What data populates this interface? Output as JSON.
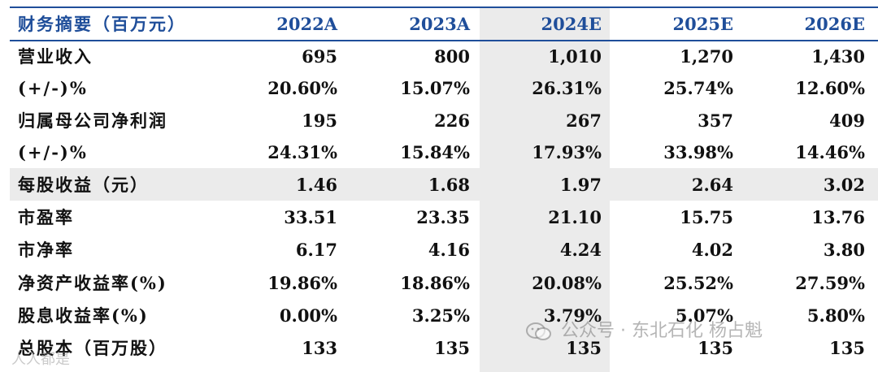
{
  "header": {
    "title": "财务摘要（百万元）",
    "years": [
      "2022A",
      "2023A",
      "2024E",
      "2025E",
      "2026E"
    ]
  },
  "rows": [
    {
      "label": "营业收入",
      "values": [
        "695",
        "800",
        "1,010",
        "1,270",
        "1,430"
      ]
    },
    {
      "label": "(+/-)%",
      "values": [
        "20.60%",
        "15.07%",
        "26.31%",
        "25.74%",
        "12.60%"
      ]
    },
    {
      "label": "归属母公司净利润",
      "values": [
        "195",
        "226",
        "267",
        "357",
        "409"
      ]
    },
    {
      "label": "(+/-)%",
      "values": [
        "24.31%",
        "15.84%",
        "17.93%",
        "33.98%",
        "14.46%"
      ]
    },
    {
      "label": "每股收益（元）",
      "values": [
        "1.46",
        "1.68",
        "1.97",
        "2.64",
        "3.02"
      ]
    },
    {
      "label": "市盈率",
      "values": [
        "33.51",
        "23.35",
        "21.10",
        "15.75",
        "13.76"
      ]
    },
    {
      "label": "市净率",
      "values": [
        "6.17",
        "4.16",
        "4.24",
        "4.02",
        "3.80"
      ]
    },
    {
      "label": "净资产收益率(%)",
      "values": [
        "19.86%",
        "18.86%",
        "20.08%",
        "25.52%",
        "27.59%"
      ]
    },
    {
      "label": "股息收益率(%)",
      "values": [
        "0.00%",
        "3.25%",
        "3.79%",
        "5.07%",
        "5.80%"
      ]
    },
    {
      "label": "总股本（百万股）",
      "values": [
        "133",
        "135",
        "135",
        "135",
        "135"
      ]
    }
  ],
  "watermark": {
    "text": "公众号 · 东北石化 杨占魁",
    "corner_text": "人人都是"
  },
  "colors": {
    "accent": "#1f4e9a",
    "highlight": "#ebebeb"
  }
}
